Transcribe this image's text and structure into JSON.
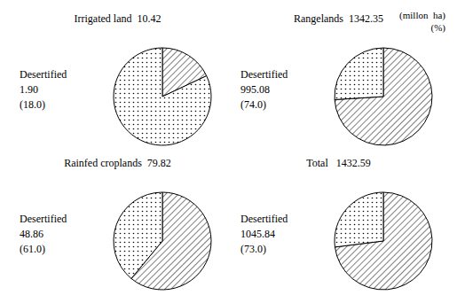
{
  "chart_data": [
    {
      "type": "pie",
      "title": "Irrigated land  10.42",
      "annotations": [
        "Desertified",
        "1.90",
        "(18.0)"
      ],
      "values": [
        18.0,
        82.0
      ]
    },
    {
      "type": "pie",
      "title": "Rangelands  1342.35",
      "annotations": [
        "Desertified",
        "995.08",
        "(74.0)"
      ],
      "values": [
        74.0,
        26.0
      ]
    },
    {
      "type": "pie",
      "title": "Rainfed croplands  79.82",
      "annotations": [
        "Desertified",
        "48.86",
        "(61.0)"
      ],
      "values": [
        61.0,
        39.0
      ]
    },
    {
      "type": "pie",
      "title": "Total   1432.59",
      "annotations": [
        "Desertified",
        "1045.84",
        "(73.0)"
      ],
      "values": [
        73.0,
        27.0
      ]
    }
  ],
  "annotations": [
    "(millon  ha)",
    "(%)"
  ]
}
